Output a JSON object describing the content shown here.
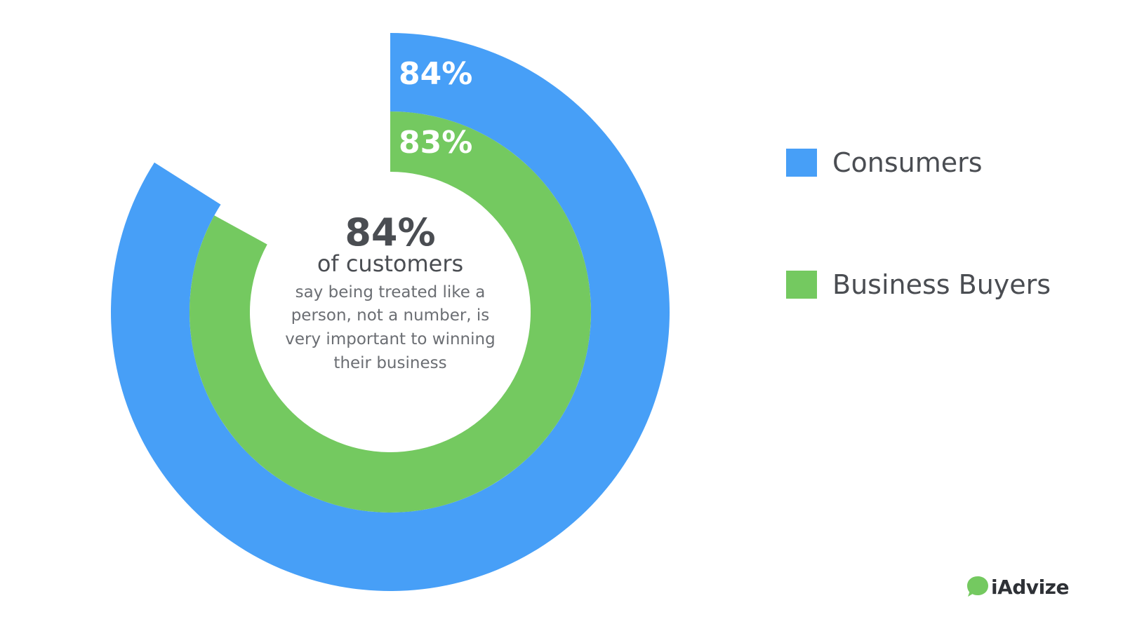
{
  "chart_data": {
    "type": "pie",
    "series": [
      {
        "name": "Consumers",
        "value": 84,
        "label": "84%",
        "color": "#479ff7"
      },
      {
        "name": "Business Buyers",
        "value": 83,
        "label": "83%",
        "color": "#74c960"
      }
    ],
    "center": {
      "headline": "84%",
      "subhead": "of customers",
      "lines": [
        "say being treated like a",
        "person, not a number, is",
        "very important to winning",
        "their business"
      ]
    },
    "legend_position": "right"
  },
  "legend": {
    "items": [
      {
        "label": "Consumers",
        "color": "#479ff7"
      },
      {
        "label": "Business Buyers",
        "color": "#74c960"
      }
    ]
  },
  "brand": {
    "name": "iAdvize",
    "icon": "speech-bubble-icon",
    "color": "#74c960"
  }
}
